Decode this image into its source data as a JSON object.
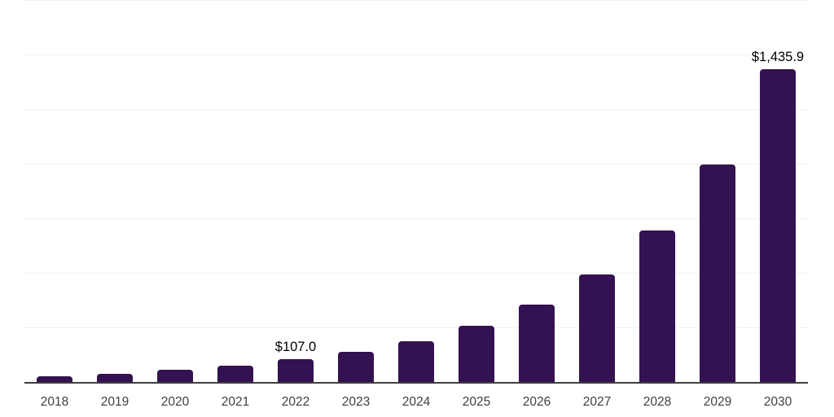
{
  "chart_data": {
    "type": "bar",
    "title": "",
    "xlabel": "",
    "ylabel": "",
    "categories": [
      "2018",
      "2019",
      "2020",
      "2021",
      "2022",
      "2023",
      "2024",
      "2025",
      "2026",
      "2027",
      "2028",
      "2029",
      "2030"
    ],
    "values": [
      31,
      40,
      59,
      78,
      107.0,
      141,
      190,
      260,
      358,
      495,
      699,
      1001,
      1435.9
    ],
    "value_labels": {
      "2022": "$107.0",
      "2030": "$1,435.9"
    },
    "ylim": [
      0,
      1750
    ],
    "gridline_step": 250,
    "grid": true,
    "legend_position": "none",
    "y_tick_labels_visible": false,
    "colors": {
      "bar": "#341150",
      "axis_line": "#3e3e3e",
      "gridline": "#f0f0f2",
      "tick_label": "#3f3f3f",
      "value_label": "#000000",
      "background": "#ffffff"
    }
  }
}
